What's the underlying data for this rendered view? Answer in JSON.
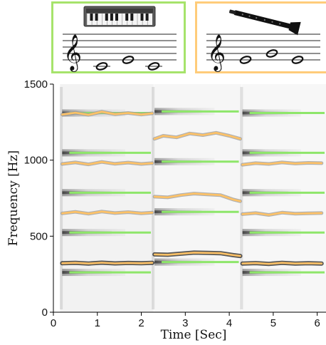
{
  "panels": [
    {
      "instrument": "piano",
      "border_color": "#a6e36b",
      "icon": "piano-keyboard-icon"
    },
    {
      "instrument": "clarinet",
      "border_color": "#ffcc7a",
      "icon": "clarinet-icon"
    }
  ],
  "chart_data": {
    "type": "line",
    "background": "spectrogram",
    "xlabel": "Time [Sec]",
    "ylabel": "Frequency [Hz]",
    "xlim": [
      0,
      6.2
    ],
    "ylim": [
      0,
      1500
    ],
    "x_ticks": [
      0,
      1,
      2,
      3,
      4,
      5,
      6
    ],
    "y_ticks": [
      0,
      500,
      1000,
      1500
    ],
    "note_segments": [
      {
        "start": 0.2,
        "end": 2.25,
        "f0": 262
      },
      {
        "start": 2.3,
        "end": 4.25,
        "f0": 330
      },
      {
        "start": 4.3,
        "end": 6.2,
        "f0": 262
      }
    ],
    "harmonic_count": 5,
    "colors": {
      "piano_harmonics": "#8ee66a",
      "clarinet_track": "#ffc266",
      "clarinet_outline": "#9a9a9a",
      "dark_track": "#222222"
    },
    "series": [
      {
        "x": [
          0.2,
          0.5,
          0.8,
          1.1,
          1.4,
          1.7,
          2.0,
          2.25
        ],
        "values": [
          322,
          325,
          320,
          326,
          321,
          324,
          322,
          325
        ]
      },
      {
        "x": [
          0.2,
          0.5,
          0.8,
          1.1,
          1.4,
          1.7,
          2.0,
          2.25
        ],
        "values": [
          650,
          660,
          648,
          662,
          652,
          658,
          650,
          655
        ]
      },
      {
        "x": [
          0.2,
          0.5,
          0.8,
          1.1,
          1.4,
          1.7,
          2.0,
          2.25
        ],
        "values": [
          975,
          985,
          972,
          988,
          976,
          984,
          975,
          980
        ]
      },
      {
        "x": [
          0.2,
          0.5,
          0.8,
          1.1,
          1.4,
          1.7,
          2.0,
          2.25
        ],
        "values": [
          1300,
          1312,
          1298,
          1318,
          1302,
          1310,
          1300,
          1308
        ]
      },
      {
        "x": [
          2.3,
          2.6,
          2.9,
          3.2,
          3.5,
          3.8,
          4.1,
          4.25
        ],
        "values": [
          380,
          378,
          385,
          392,
          390,
          388,
          375,
          370
        ]
      },
      {
        "x": [
          2.3,
          2.6,
          2.9,
          3.2,
          3.5,
          3.8,
          4.1,
          4.25
        ],
        "values": [
          760,
          755,
          770,
          780,
          775,
          770,
          740,
          730
        ]
      },
      {
        "x": [
          2.3,
          2.5,
          2.8,
          3.1,
          3.4,
          3.7,
          4.0,
          4.25
        ],
        "values": [
          1140,
          1160,
          1150,
          1175,
          1165,
          1180,
          1160,
          1140
        ]
      },
      {
        "x": [
          4.3,
          4.6,
          4.9,
          5.2,
          5.5,
          5.8,
          6.1
        ],
        "values": [
          320,
          323,
          318,
          325,
          320,
          322,
          320
        ]
      },
      {
        "x": [
          4.3,
          4.6,
          4.9,
          5.2,
          5.5,
          5.8,
          6.1
        ],
        "values": [
          645,
          652,
          640,
          655,
          648,
          650,
          652
        ]
      },
      {
        "x": [
          4.3,
          4.6,
          4.9,
          5.2,
          5.5,
          5.8,
          6.1
        ],
        "values": [
          970,
          980,
          975,
          985,
          978,
          982,
          980
        ]
      }
    ]
  },
  "staff_notes": {
    "left": [
      {
        "pitch": "C4",
        "position": 1
      },
      {
        "pitch": "E4",
        "position": 2
      },
      {
        "pitch": "C4",
        "position": 3
      }
    ],
    "right": [
      {
        "pitch": "E4",
        "position": 1
      },
      {
        "pitch": "G4",
        "position": 2
      },
      {
        "pitch": "E4",
        "position": 3
      }
    ]
  }
}
